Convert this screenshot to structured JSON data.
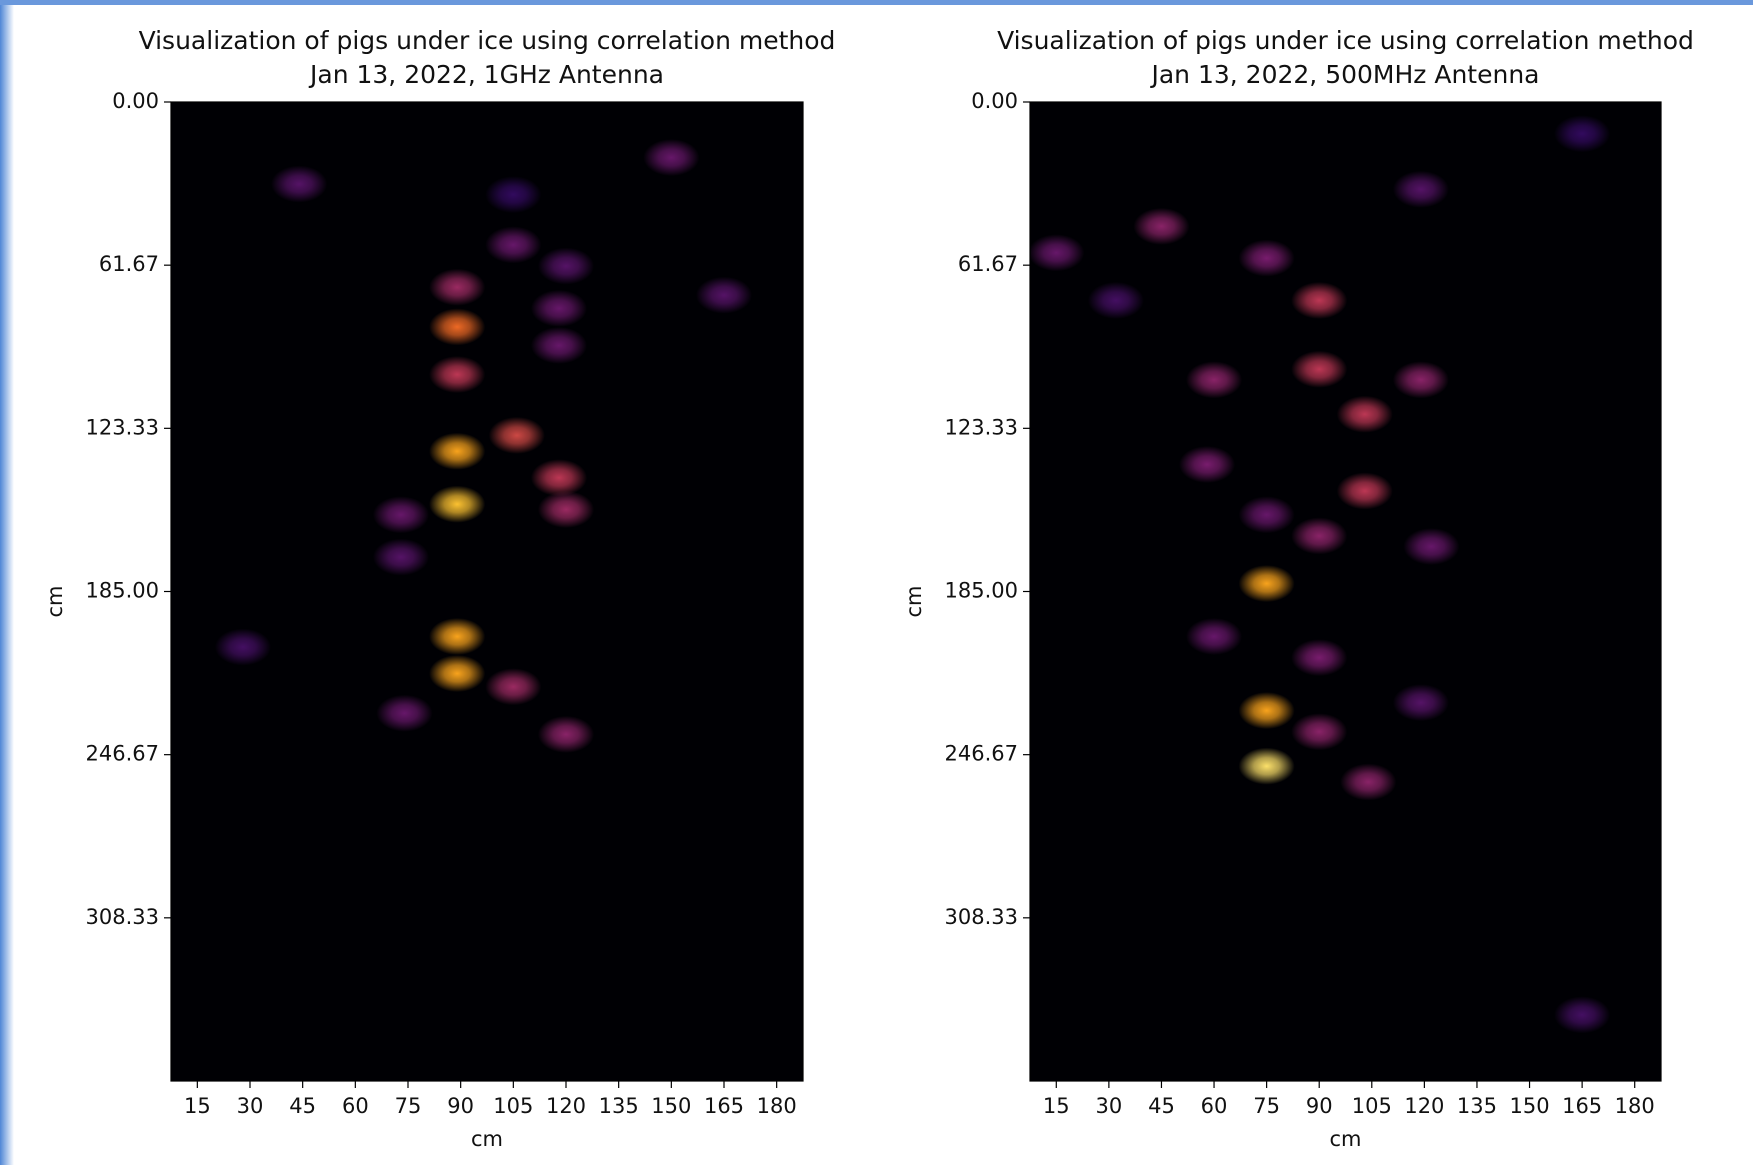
{
  "chart_data": [
    {
      "type": "heatmap",
      "title": "Visualization of pigs under ice using correlation method",
      "subtitle": "Jan 13, 2022, 1GHz Antenna",
      "x_label": "cm",
      "y_label": "cm",
      "xlim": [
        7.5,
        187.5
      ],
      "ylim": [
        370,
        0
      ],
      "xticks": [
        15,
        30,
        45,
        60,
        75,
        90,
        105,
        120,
        135,
        150,
        165,
        180
      ],
      "yticks": [
        {
          "value": 0,
          "label": "0.00"
        },
        {
          "value": 61.67,
          "label": "61.67"
        },
        {
          "value": 123.33,
          "label": "123.33"
        },
        {
          "value": 185,
          "label": "185.00"
        },
        {
          "value": 246.67,
          "label": "246.67"
        },
        {
          "value": 308.33,
          "label": "308.33"
        }
      ],
      "colormap": "inferno",
      "points": [
        {
          "x": 89,
          "y": 85,
          "value": 0.75
        },
        {
          "x": 89,
          "y": 70,
          "value": 0.5
        },
        {
          "x": 89,
          "y": 103,
          "value": 0.6
        },
        {
          "x": 89,
          "y": 132,
          "value": 0.85
        },
        {
          "x": 106,
          "y": 126,
          "value": 0.65
        },
        {
          "x": 118,
          "y": 142,
          "value": 0.6
        },
        {
          "x": 89,
          "y": 152,
          "value": 0.9
        },
        {
          "x": 120,
          "y": 154,
          "value": 0.5
        },
        {
          "x": 89,
          "y": 202,
          "value": 0.85
        },
        {
          "x": 89,
          "y": 216,
          "value": 0.85
        },
        {
          "x": 105,
          "y": 221,
          "value": 0.5
        },
        {
          "x": 120,
          "y": 239,
          "value": 0.45
        },
        {
          "x": 74,
          "y": 231,
          "value": 0.35
        },
        {
          "x": 105,
          "y": 54,
          "value": 0.35
        },
        {
          "x": 120,
          "y": 62,
          "value": 0.3
        },
        {
          "x": 118,
          "y": 78,
          "value": 0.35
        },
        {
          "x": 118,
          "y": 92,
          "value": 0.35
        },
        {
          "x": 44,
          "y": 31,
          "value": 0.3
        },
        {
          "x": 150,
          "y": 21,
          "value": 0.35
        },
        {
          "x": 165,
          "y": 73,
          "value": 0.3
        },
        {
          "x": 73,
          "y": 172,
          "value": 0.3
        },
        {
          "x": 28,
          "y": 206,
          "value": 0.25
        },
        {
          "x": 105,
          "y": 35,
          "value": 0.2
        },
        {
          "x": 73,
          "y": 156,
          "value": 0.35
        }
      ]
    },
    {
      "type": "heatmap",
      "title": "Visualization of pigs under ice using correlation method",
      "subtitle": "Jan 13, 2022, 500MHz Antenna",
      "x_label": "cm",
      "y_label": "cm",
      "xlim": [
        7.5,
        187.5
      ],
      "ylim": [
        370,
        0
      ],
      "xticks": [
        15,
        30,
        45,
        60,
        75,
        90,
        105,
        120,
        135,
        150,
        165,
        180
      ],
      "yticks": [
        {
          "value": 0,
          "label": "0.00"
        },
        {
          "value": 61.67,
          "label": "61.67"
        },
        {
          "value": 123.33,
          "label": "123.33"
        },
        {
          "value": 185,
          "label": "185.00"
        },
        {
          "value": 246.67,
          "label": "246.67"
        },
        {
          "value": 308.33,
          "label": "308.33"
        }
      ],
      "colormap": "inferno",
      "points": [
        {
          "x": 75,
          "y": 251,
          "value": 0.95
        },
        {
          "x": 75,
          "y": 230,
          "value": 0.85
        },
        {
          "x": 75,
          "y": 182,
          "value": 0.85
        },
        {
          "x": 90,
          "y": 75,
          "value": 0.6
        },
        {
          "x": 90,
          "y": 101,
          "value": 0.6
        },
        {
          "x": 103,
          "y": 118,
          "value": 0.6
        },
        {
          "x": 103,
          "y": 147,
          "value": 0.6
        },
        {
          "x": 45,
          "y": 47,
          "value": 0.45
        },
        {
          "x": 15,
          "y": 57,
          "value": 0.35
        },
        {
          "x": 75,
          "y": 59,
          "value": 0.4
        },
        {
          "x": 60,
          "y": 105,
          "value": 0.45
        },
        {
          "x": 119,
          "y": 105,
          "value": 0.45
        },
        {
          "x": 58,
          "y": 137,
          "value": 0.4
        },
        {
          "x": 90,
          "y": 164,
          "value": 0.45
        },
        {
          "x": 122,
          "y": 168,
          "value": 0.35
        },
        {
          "x": 90,
          "y": 210,
          "value": 0.4
        },
        {
          "x": 90,
          "y": 238,
          "value": 0.45
        },
        {
          "x": 104,
          "y": 257,
          "value": 0.45
        },
        {
          "x": 119,
          "y": 227,
          "value": 0.3
        },
        {
          "x": 60,
          "y": 202,
          "value": 0.35
        },
        {
          "x": 119,
          "y": 33,
          "value": 0.3
        },
        {
          "x": 165,
          "y": 345,
          "value": 0.25
        },
        {
          "x": 165,
          "y": 12,
          "value": 0.2
        },
        {
          "x": 75,
          "y": 156,
          "value": 0.35
        },
        {
          "x": 32,
          "y": 75,
          "value": 0.25
        }
      ]
    }
  ]
}
